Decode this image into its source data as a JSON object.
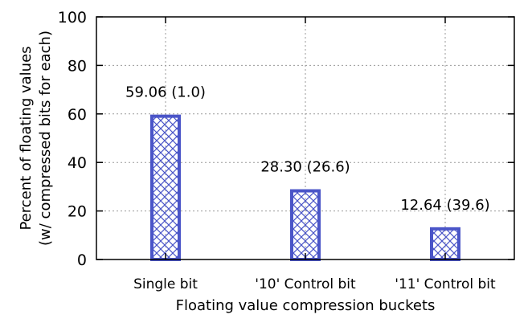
{
  "chart_data": {
    "type": "bar",
    "title": "",
    "categories": [
      "Single bit",
      "'10' Control bit",
      "'11' Control bit"
    ],
    "values": [
      59.06,
      28.3,
      12.64
    ],
    "data_labels": [
      "59.06 (1.0)",
      "28.30 (26.6)",
      "12.64 (39.6)"
    ],
    "xlabel": "Floating value compression buckets",
    "ylabel_lines": [
      "Percent of floating values",
      "(w/ compressed bits for each)"
    ],
    "ylim": [
      0,
      100
    ],
    "yticks": [
      0,
      20,
      40,
      60,
      80,
      100
    ],
    "grid": true,
    "bar_color": "#4a55c8",
    "bar_pattern": "crosshatch"
  }
}
